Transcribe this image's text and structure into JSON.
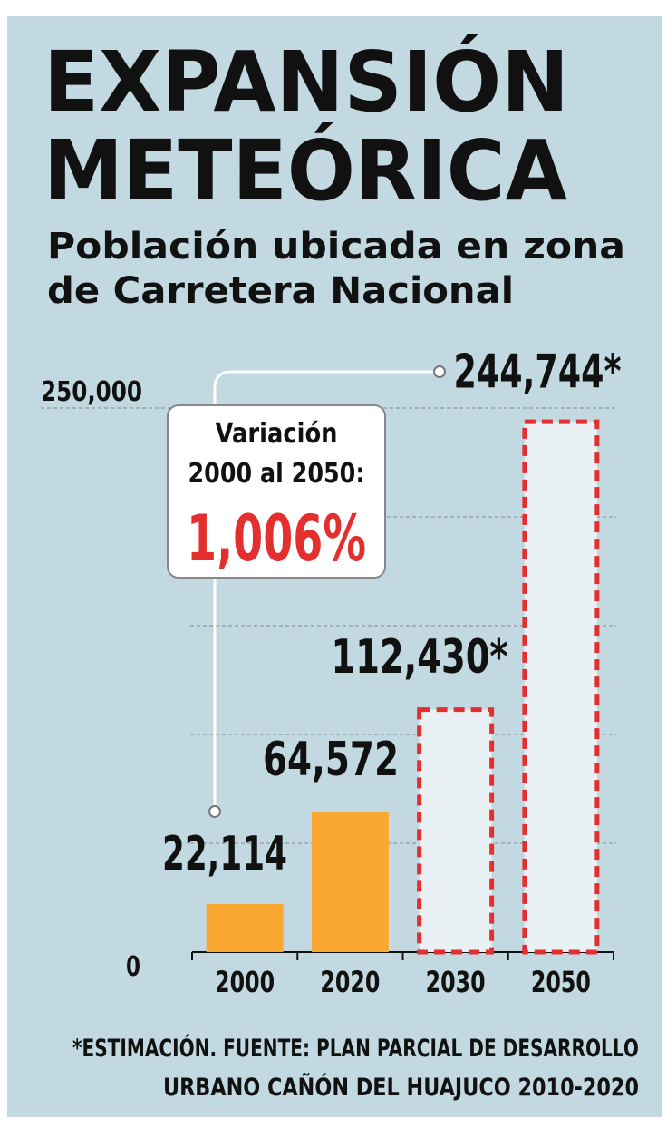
{
  "chart_data": {
    "type": "bar",
    "title": [
      "EXPANSIÓN",
      "METEÓRICA"
    ],
    "subtitle": [
      "Población ubicada en zona",
      "de Carretera Nacional"
    ],
    "categories": [
      "2000",
      "2020",
      "2030",
      "2050"
    ],
    "values": [
      22114,
      64572,
      112430,
      244744
    ],
    "value_labels": [
      "22,114",
      "64,572",
      "112,430*",
      "244,744*"
    ],
    "bar_styles": [
      "solid",
      "solid",
      "dashed",
      "dashed"
    ],
    "colors": [
      "#f9a932",
      "#f9a932",
      "#e9f1f4",
      "#e9f1f4"
    ],
    "dash_color": "#e3302f",
    "ylim": [
      0,
      250000
    ],
    "yticks": [
      0,
      {
        "value": 50000,
        "label": null
      },
      {
        "value": 100000,
        "label": null
      },
      {
        "value": 150000,
        "label": null
      },
      {
        "value": 200000,
        "label": null
      },
      {
        "value": 250000,
        "label": "250,000"
      }
    ],
    "grid": true,
    "annotation": {
      "lines": [
        "Variación",
        "2000 al 2050:"
      ],
      "value": 1006,
      "value_label": "1,006%",
      "color": "#e3302f"
    },
    "footnote": [
      "*ESTIMACIÓN. FUENTE: PLAN PARCIAL DE DESARROLLO",
      "URBANO CAÑÓN DEL HUAJUCO 2010-2020"
    ]
  }
}
